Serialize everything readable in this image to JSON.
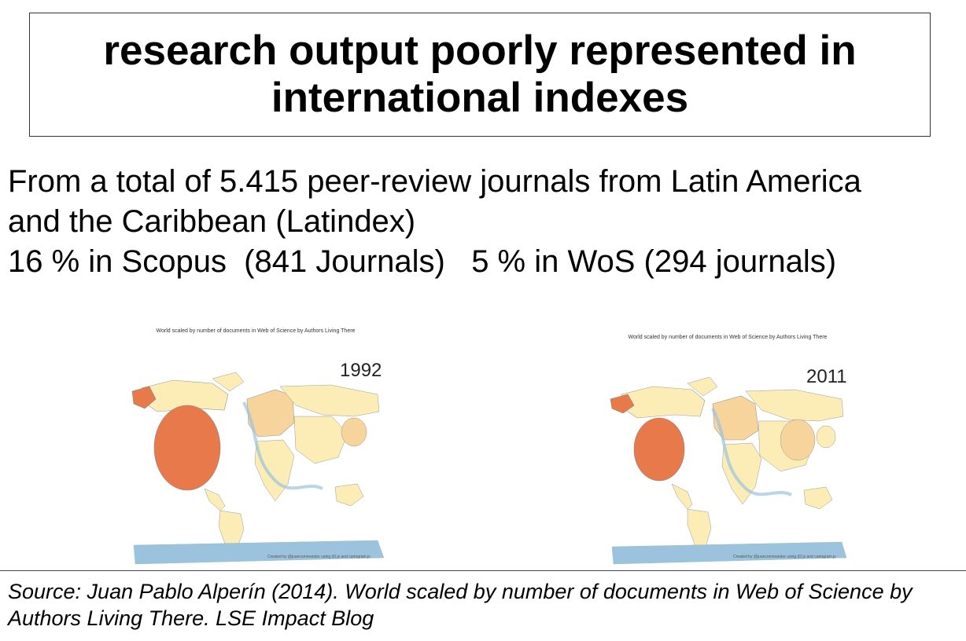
{
  "slide": {
    "title": "research output poorly represented in international indexes",
    "body_lines": [
      "From a total of 5.415 peer-review journals from Latin America",
      "and the Caribbean (Latindex)",
      "16 % in Scopus  (841 Journals)   5 % in WoS (294 journals)"
    ],
    "source": "Source: Juan Pablo Alperín (2014). World scaled by number of documents in Web of Science by Authors Living There. LSE Impact Blog"
  },
  "maps": [
    {
      "caption": "World scaled by number of documents in Web of Science by Authors Living There",
      "year": "1992",
      "credit": "Created by @juancommander using d3.js and cartogram.js"
    },
    {
      "caption": "World scaled by number of documents in Web of Science by Authors Living There",
      "year": "2011",
      "credit": "Created by @juancommander using d3.js and cartogram.js"
    }
  ],
  "colors": {
    "ocean_ice": "#9cc3de",
    "land_light": "#fbedb5",
    "land_mid": "#f6d49b",
    "usa": "#e8794a",
    "border": "#333333"
  }
}
